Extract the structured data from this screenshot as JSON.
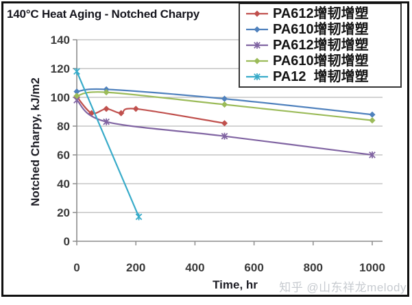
{
  "figure": {
    "watermark": "知乎 @山东祥龙melody",
    "border_color": "#101010",
    "background_color": "#ffffff",
    "gridline_color": "#b9b9b9",
    "axis_color": "#8c8c8c",
    "tick_label_color": "#3a3a3a",
    "watermark_color": "#c7cbd0"
  },
  "chart_data": {
    "type": "line",
    "title": "140°C Heat Aging - Notched Charpy",
    "xlabel": "Time, hr",
    "ylabel": "Notched Charpy, kJ/m2",
    "xlim": [
      0,
      1000
    ],
    "ylim": [
      0,
      140
    ],
    "x_ticks": [
      0,
      200,
      400,
      600,
      800,
      1000
    ],
    "y_ticks": [
      0,
      20,
      40,
      60,
      80,
      100,
      120,
      140
    ],
    "grid": "horizontal",
    "legend_position": "top-right",
    "series": [
      {
        "name": "PA612增韧增塑",
        "color": "#c0504d",
        "marker": "diamond",
        "points": [
          [
            0,
            100.5
          ],
          [
            50,
            89
          ],
          [
            100,
            92
          ],
          [
            150,
            89
          ],
          [
            200,
            92
          ],
          [
            500,
            82
          ]
        ]
      },
      {
        "name": "PA610增韧增塑",
        "color": "#4f81bd",
        "marker": "diamond",
        "points": [
          [
            0,
            104
          ],
          [
            100,
            105.5
          ],
          [
            500,
            99
          ],
          [
            1000,
            88
          ]
        ]
      },
      {
        "name": "PA612增韧增塑",
        "color": "#8064a2",
        "marker": "asterisk",
        "points": [
          [
            0,
            98
          ],
          [
            100,
            83
          ],
          [
            500,
            73
          ],
          [
            1000,
            60
          ]
        ]
      },
      {
        "name": "PA610增韧增塑",
        "color": "#9bbb59",
        "marker": "diamond",
        "points": [
          [
            0,
            101
          ],
          [
            100,
            103.5
          ],
          [
            500,
            95
          ],
          [
            1000,
            84
          ]
        ]
      },
      {
        "name": "PA12  增韧增塑",
        "color": "#38abc9",
        "marker": "asterisk",
        "points": [
          [
            0,
            118
          ],
          [
            210,
            17
          ]
        ]
      }
    ]
  }
}
